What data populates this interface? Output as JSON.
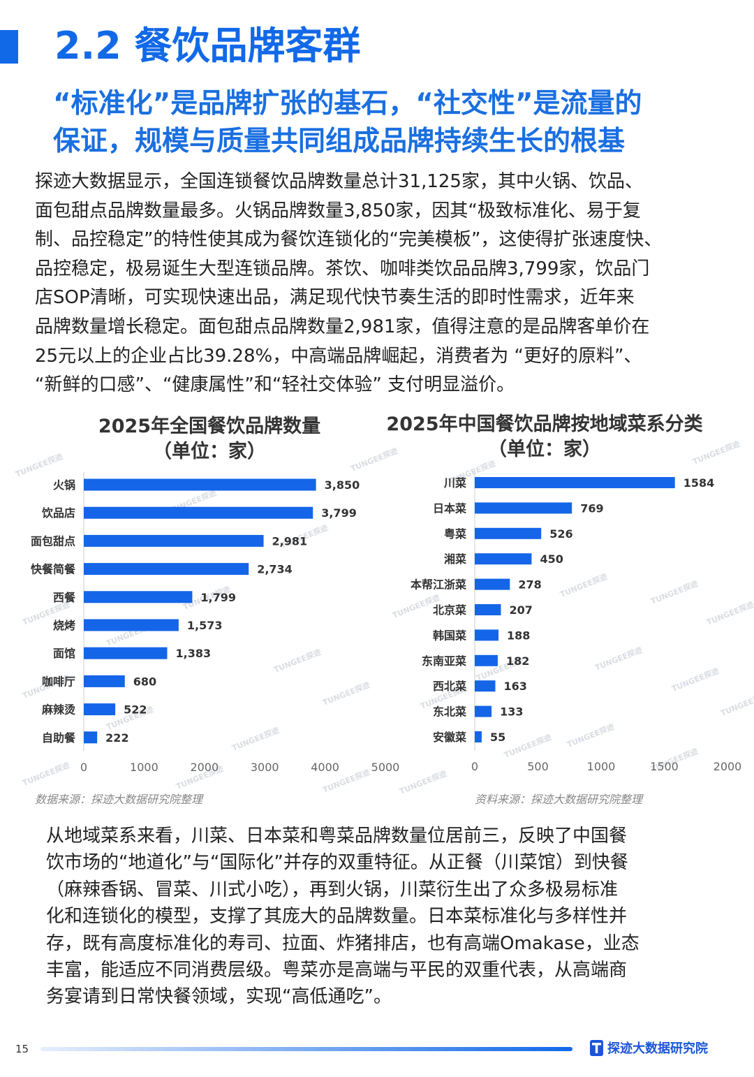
{
  "header": {
    "title": "2.2 餐饮品牌客群",
    "subtitle_lines": [
      "“标准化”是品牌扩张的基石，“社交性”是流量的",
      "保证，规模与质量共同组成品牌持续生长的根基"
    ]
  },
  "intro_lines": [
    "探迹大数据显示，全国连锁餐饮品牌数量总计31,125家，其中火锅、饮品、",
    "面包甜点品牌数量最多。火锅品牌数量3,850家，因其“极致标准化、易于复",
    "制、品控稳定”的特性使其成为餐饮连锁化的“完美模板”，这使得扩张速度快、",
    "品控稳定，极易诞生大型连锁品牌。茶饮、咖啡类饮品品牌3,799家，饮品门",
    "店SOP清晰，可实现快速出品，满足现代快节奏生活的即时性需求，近年来",
    "品牌数量增长稳定。面包甜点品牌数量2,981家，值得注意的是品牌客单价在",
    "25元以上的企业占比39.28%，中高端品牌崛起，消费者为 “更好的原料”、",
    "“新鲜的口感”、“健康属性”和“轻社交体验” 支付明显溢价。"
  ],
  "chart_data": [
    {
      "type": "bar",
      "orientation": "horizontal",
      "title_lines": [
        "2025年全国餐饮品牌数量",
        "（单位：家）"
      ],
      "categories": [
        "火锅",
        "饮品店",
        "面包甜点",
        "快餐简餐",
        "西餐",
        "烧烤",
        "面馆",
        "咖啡厅",
        "麻辣烫",
        "自助餐"
      ],
      "values": [
        3850,
        3799,
        2981,
        2734,
        1799,
        1573,
        1383,
        680,
        522,
        222
      ],
      "value_labels": [
        "3,850",
        "3,799",
        "2,981",
        "2,734",
        "1,799",
        "1,573",
        "1,383",
        "680",
        "522",
        "222"
      ],
      "xlim": [
        0,
        5000
      ],
      "ticks": [
        "0",
        "1000",
        "2000",
        "3000",
        "4000",
        "5000"
      ],
      "source": "数据来源：探迹大数据研究院整理",
      "bar_color": "#1565e8"
    },
    {
      "type": "bar",
      "orientation": "horizontal",
      "title_lines": [
        "2025年中国餐饮品牌按地域菜系分类",
        "（单位：家）"
      ],
      "categories": [
        "川菜",
        "日本菜",
        "粤菜",
        "湘菜",
        "本帮江浙菜",
        "北京菜",
        "韩国菜",
        "东南亚菜",
        "西北菜",
        "东北菜",
        "安徽菜"
      ],
      "values": [
        1584,
        769,
        526,
        450,
        278,
        207,
        188,
        182,
        163,
        133,
        55
      ],
      "value_labels": [
        "1584",
        "769",
        "526",
        "450",
        "278",
        "207",
        "188",
        "182",
        "163",
        "133",
        "55"
      ],
      "xlim": [
        0,
        2000
      ],
      "ticks": [
        "0",
        "500",
        "1000",
        "1500",
        "2000"
      ],
      "source": "资料来源：探迹大数据研究院整理",
      "bar_color": "#1565e8"
    }
  ],
  "analysis_lines": [
    "从地域菜系来看，川菜、日本菜和粤菜品牌数量位居前三，反映了中国餐",
    "饮市场的“地道化”与“国际化”并存的双重特征。从正餐（川菜馆）到快餐",
    "（麻辣香锅、冒菜、川式小吃），再到火锅，川菜衍生出了众多极易标准",
    "化和连锁化的模型，支撑了其庞大的品牌数量。日本菜标准化与多样性并",
    "存，既有高度标准化的寿司、拉面、炸猪排店，也有高端Omakase，业态",
    "丰富，能适应不同消费层级。粤菜亦是高端与平民的双重代表，从高端商",
    "务宴请到日常快餐领域，实现“高低通吃”。"
  ],
  "watermark": "TUNGEE探迹",
  "footer": {
    "page_number": "15",
    "brand": "探迹大数据研究院",
    "brand_icon": "tungee-logo-icon"
  },
  "colors": {
    "accent": "#1269e8",
    "bar": "#1565e8"
  }
}
